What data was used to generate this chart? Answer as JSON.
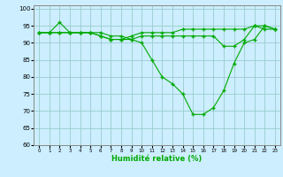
{
  "x": [
    0,
    1,
    2,
    3,
    4,
    5,
    6,
    7,
    8,
    9,
    10,
    11,
    12,
    13,
    14,
    15,
    16,
    17,
    18,
    19,
    20,
    21,
    22,
    23
  ],
  "line1": [
    93,
    93,
    93,
    93,
    93,
    93,
    92,
    91,
    91,
    92,
    93,
    93,
    93,
    93,
    94,
    94,
    94,
    94,
    94,
    94,
    94,
    95,
    94,
    94
  ],
  "line2": [
    93,
    93,
    96,
    93,
    93,
    93,
    92,
    91,
    91,
    91,
    92,
    92,
    92,
    92,
    92,
    92,
    92,
    92,
    89,
    89,
    91,
    95,
    95,
    94
  ],
  "line3": [
    93,
    93,
    93,
    93,
    93,
    93,
    93,
    92,
    92,
    91,
    90,
    85,
    80,
    78,
    75,
    69,
    69,
    71,
    76,
    84,
    90,
    91,
    95,
    94
  ],
  "line_color": "#00aa00",
  "bg_color": "#cceeff",
  "grid_color": "#99cccc",
  "xlabel": "Humidité relative (%)",
  "ylim": [
    60,
    101
  ],
  "xlim": [
    -0.5,
    23.5
  ],
  "yticks": [
    60,
    65,
    70,
    75,
    80,
    85,
    90,
    95,
    100
  ],
  "xticks": [
    0,
    1,
    2,
    3,
    4,
    5,
    6,
    7,
    8,
    9,
    10,
    11,
    12,
    13,
    14,
    15,
    16,
    17,
    18,
    19,
    20,
    21,
    22,
    23
  ]
}
